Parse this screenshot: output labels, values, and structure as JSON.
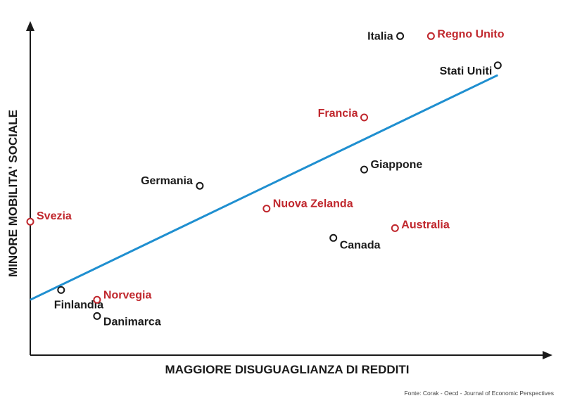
{
  "chart_data": {
    "type": "scatter",
    "xlabel": "MAGGIORE DISUGUAGLIANZA DI REDDITI",
    "ylabel": "MINORE MOBILITA' SOCIALE",
    "source": "Fonte: Corak - Oecd - Journal of Economic Perspectives",
    "grid": false,
    "xlim": [
      0,
      100
    ],
    "ylim": [
      0,
      100
    ],
    "trendline": {
      "x": [
        0,
        91
      ],
      "y": [
        17,
        86
      ]
    },
    "points": [
      {
        "name": "Italia",
        "x": 72,
        "y": 98,
        "color": "#1a1a1a"
      },
      {
        "name": "Regno Unito",
        "x": 78,
        "y": 98,
        "color": "#c0272d"
      },
      {
        "name": "Stati Uniti",
        "x": 91,
        "y": 89,
        "color": "#1a1a1a"
      },
      {
        "name": "Francia",
        "x": 65,
        "y": 73,
        "color": "#c0272d"
      },
      {
        "name": "Giappone",
        "x": 65,
        "y": 57,
        "color": "#1a1a1a"
      },
      {
        "name": "Germania",
        "x": 33,
        "y": 52,
        "color": "#1a1a1a"
      },
      {
        "name": "Nuova Zelanda",
        "x": 46,
        "y": 45,
        "color": "#c0272d"
      },
      {
        "name": "Svezia",
        "x": 0,
        "y": 41,
        "color": "#c0272d"
      },
      {
        "name": "Australia",
        "x": 71,
        "y": 39,
        "color": "#c0272d"
      },
      {
        "name": "Canada",
        "x": 59,
        "y": 36,
        "color": "#1a1a1a"
      },
      {
        "name": "Finlandia",
        "x": 6,
        "y": 20,
        "color": "#1a1a1a"
      },
      {
        "name": "Norvegia",
        "x": 13,
        "y": 17,
        "color": "#c0272d"
      },
      {
        "name": "Danimarca",
        "x": 13,
        "y": 12,
        "color": "#1a1a1a"
      }
    ],
    "colors": {
      "axis": "#1a1a1a",
      "trendline": "#1f8fd0",
      "highlight": "#c0272d",
      "default": "#1a1a1a"
    }
  }
}
